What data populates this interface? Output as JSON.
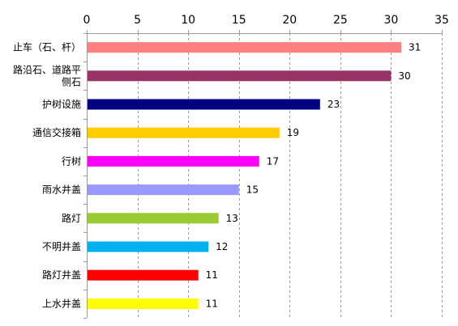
{
  "chart_data": {
    "type": "bar",
    "orientation": "horizontal",
    "title": "",
    "xlabel": "",
    "ylabel": "",
    "xlim": [
      0,
      35
    ],
    "x_ticks": [
      0,
      5,
      10,
      15,
      20,
      25,
      30,
      35
    ],
    "tick_labels": [
      "0",
      "5",
      "10",
      "15",
      "20",
      "25",
      "30",
      "35"
    ],
    "x_axis_position": "top",
    "grid": "vertical-dashed",
    "legend": "none",
    "categories": [
      {
        "lines": [
          "止车（石、杆）"
        ]
      },
      {
        "lines": [
          "路沿石、道路平",
          "侧石"
        ]
      },
      {
        "lines": [
          "护树设施"
        ]
      },
      {
        "lines": [
          "通信交接箱"
        ]
      },
      {
        "lines": [
          "行树"
        ]
      },
      {
        "lines": [
          "雨水井盖"
        ]
      },
      {
        "lines": [
          "路灯"
        ]
      },
      {
        "lines": [
          "不明井盖"
        ]
      },
      {
        "lines": [
          "路灯井盖"
        ]
      },
      {
        "lines": [
          "上水井盖"
        ]
      }
    ],
    "values": [
      31,
      30,
      23,
      19,
      17,
      15,
      13,
      12,
      11,
      11
    ],
    "value_labels": [
      "31",
      "30",
      "23",
      "19",
      "17",
      "15",
      "13",
      "12",
      "11",
      "11"
    ],
    "colors": [
      "#ff8080",
      "#993366",
      "#000080",
      "#ffcc00",
      "#ff00ff",
      "#9999ff",
      "#99cc33",
      "#00b0f0",
      "#ff0000",
      "#ffff00"
    ]
  }
}
